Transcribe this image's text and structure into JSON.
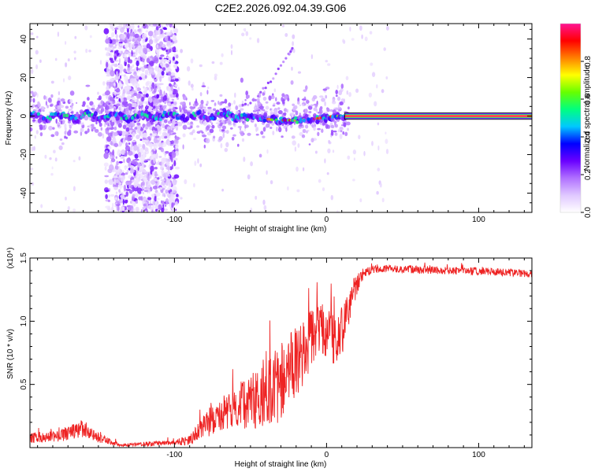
{
  "title": "C2E2.2026.092.04.39.G06",
  "chart_data": [
    {
      "type": "heatmap",
      "xlabel": "Height of straight line (km)",
      "ylabel": "Frequency (Hz)",
      "xlim": [
        -195,
        135
      ],
      "ylim": [
        -50,
        48
      ],
      "xticks": [
        -100,
        0,
        100
      ],
      "yticks": [
        -40,
        -20,
        0,
        20,
        40
      ],
      "colorbar": {
        "label": "Normalized spectral amplitude",
        "range": [
          0.0,
          1.0
        ],
        "ticks": [
          0.0,
          0.2,
          0.4,
          0.6,
          0.8
        ],
        "tick_labels": [
          "0.0",
          "0.2",
          "0.4",
          "0.6",
          "0.8"
        ],
        "colors": [
          "#ffffff",
          "#e0c8ff",
          "#b070ff",
          "#6a00ff",
          "#0000ff",
          "#00c8ff",
          "#00ff80",
          "#66ff00",
          "#ffff00",
          "#ff8000",
          "#ff0000",
          "#ff1493"
        ]
      },
      "features": [
        {
          "name": "noisy-band",
          "x_range": [
            -145,
            -98
          ],
          "freq_range": [
            -50,
            48
          ],
          "amplitude": 0.15
        },
        {
          "name": "central-signal",
          "x_range": [
            -195,
            15
          ],
          "freq": 0,
          "amplitude": 0.45
        },
        {
          "name": "tracked-tone",
          "x_range": [
            12,
            135
          ],
          "freq": 0,
          "amplitude": 1.0
        },
        {
          "name": "curving-artifact",
          "points": [
            [
              -55,
              5
            ],
            [
              -45,
              10
            ],
            [
              -35,
              20
            ],
            [
              -25,
              32
            ],
            [
              -22,
              36
            ]
          ],
          "amplitude": 0.3
        }
      ]
    },
    {
      "type": "line",
      "xlabel": "Height of straight line (km)",
      "ylabel": "SNR (10 * v/v)",
      "scale_label": "(x10⁴)",
      "xlim": [
        -195,
        135
      ],
      "ylim": [
        0,
        1.5
      ],
      "xticks": [
        -100,
        0,
        100
      ],
      "yticks": [
        0.5,
        1.0,
        1.5
      ],
      "ytick_labels": [
        "0.5",
        "1.0",
        "1.5"
      ],
      "color": "#ee2222",
      "envelope": {
        "x": [
          -195,
          -175,
          -160,
          -150,
          -135,
          -120,
          -100,
          -90,
          -80,
          -70,
          -60,
          -50,
          -40,
          -30,
          -20,
          -12,
          -5,
          0,
          5,
          12,
          18,
          25,
          35,
          60,
          100,
          135
        ],
        "mean": [
          0.08,
          0.1,
          0.16,
          0.08,
          0.02,
          0.03,
          0.04,
          0.06,
          0.18,
          0.28,
          0.32,
          0.38,
          0.48,
          0.55,
          0.7,
          0.85,
          1.0,
          0.95,
          0.9,
          1.0,
          1.25,
          1.4,
          1.42,
          1.41,
          1.4,
          1.38
        ],
        "noise": [
          0.04,
          0.05,
          0.07,
          0.04,
          0.01,
          0.02,
          0.02,
          0.04,
          0.1,
          0.14,
          0.17,
          0.22,
          0.28,
          0.32,
          0.28,
          0.25,
          0.22,
          0.22,
          0.22,
          0.2,
          0.1,
          0.04,
          0.03,
          0.03,
          0.03,
          0.03
        ]
      }
    }
  ]
}
